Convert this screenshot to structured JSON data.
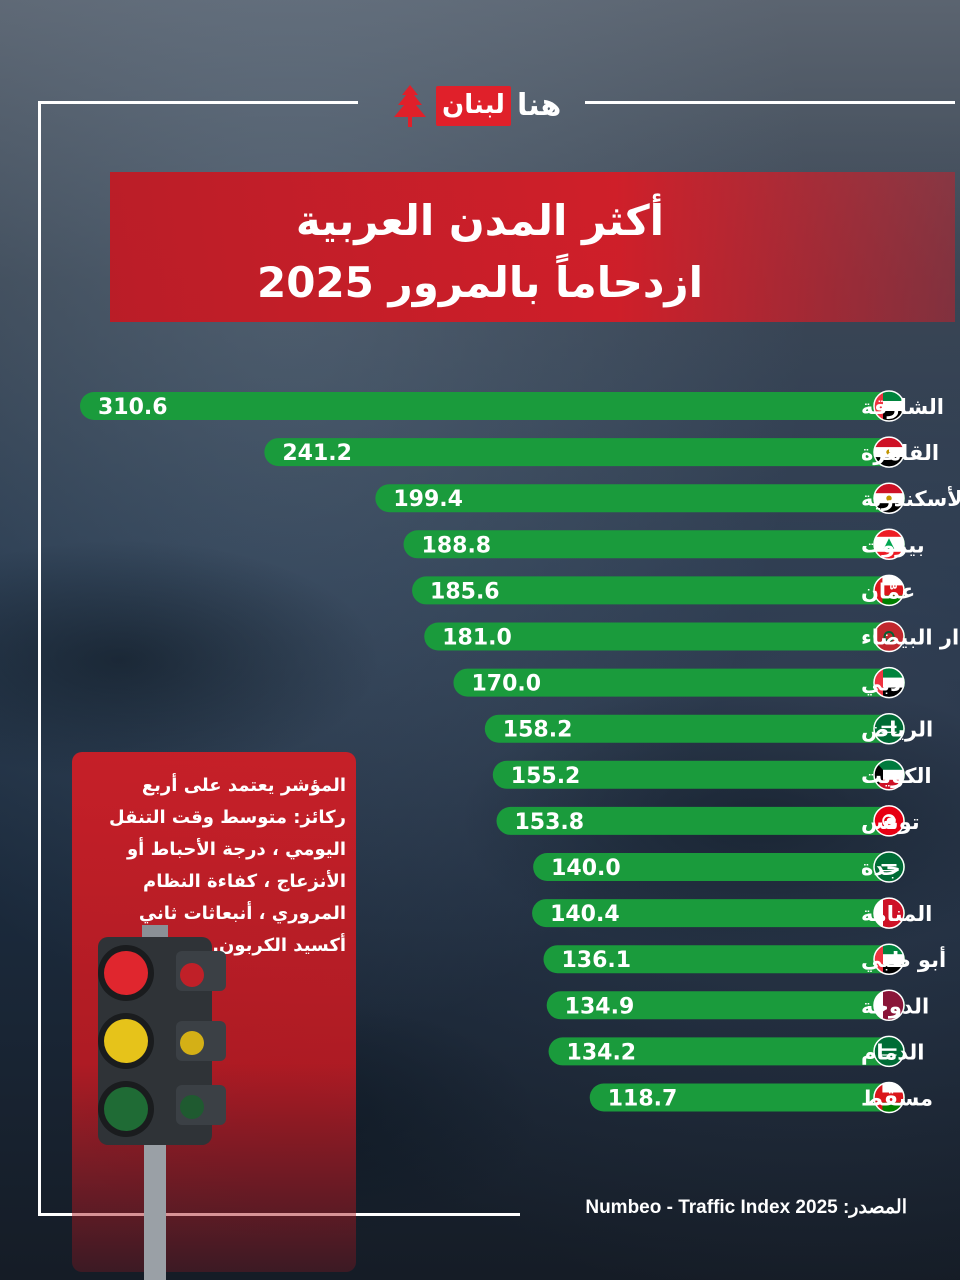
{
  "brand": {
    "logo_red": "لبنان",
    "logo_white": "هنا"
  },
  "title": {
    "line1": "أكثر المدن العربية",
    "line2": "ازدحاماً بالمرور 2025"
  },
  "info": {
    "text": "المؤشر يعتمد على أربع ركائز: متوسط وقت التنقل اليومي ، درجة الأحباط أو الأنزعاج ، كفاءة النظام المروري ، أنبعاثات ثاني أكسيد الكربون."
  },
  "source": {
    "label": "المصدر:",
    "value": "Numbeo - Traffic Index 2025"
  },
  "colors": {
    "bar": "#1a9b3c",
    "title_band": "#d61c26",
    "info_box": "#ce1e26"
  },
  "chart_data": {
    "type": "bar",
    "orientation": "horizontal",
    "title": "أكثر المدن العربية ازدحاماً بالمرور 2025",
    "categories": [
      "الشارقة",
      "القاهرة",
      "الأسكندرية",
      "بيروت",
      "عمّان",
      "الدار البيضاء",
      "دبي",
      "الرياض",
      "الكويت",
      "تونس",
      "جدة",
      "المنامة",
      "أبو ظبي",
      "الدوحة",
      "الدمام",
      "مسقط"
    ],
    "flags": [
      "uae",
      "egypt",
      "egypt",
      "lebanon",
      "oman",
      "morocco",
      "uae",
      "saudi",
      "kuwait",
      "tunisia",
      "saudi",
      "bahrain",
      "uae",
      "qatar",
      "saudi",
      "oman"
    ],
    "values": [
      310.6,
      241.2,
      199.4,
      188.8,
      185.6,
      181.0,
      170.0,
      158.2,
      155.2,
      153.8,
      140.0,
      140.4,
      136.1,
      134.9,
      134.2,
      118.7
    ],
    "labels": [
      "310.6",
      "241.2",
      "199.4",
      "188.8",
      "185.6",
      "181.0",
      "170.0",
      "158.2",
      "155.2",
      "153.8",
      "140.0",
      "140.4",
      "136.1",
      "134.9",
      "134.2",
      "118.7"
    ],
    "grid": false
  }
}
